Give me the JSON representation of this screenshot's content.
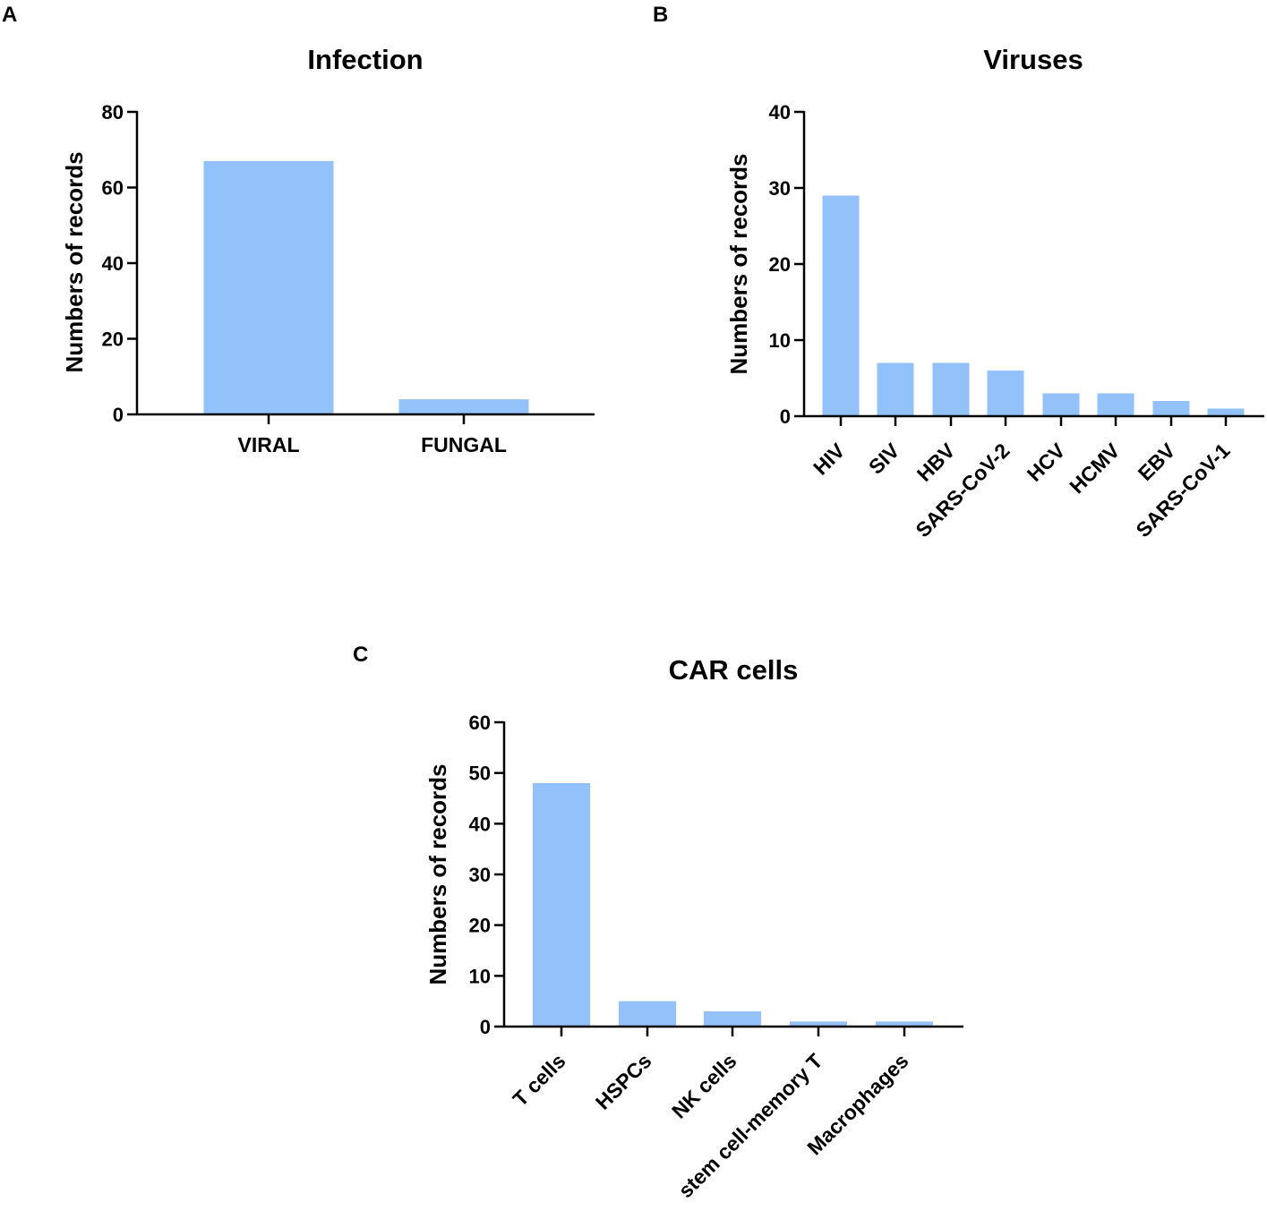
{
  "chart_data": [
    {
      "panel": "A",
      "type": "bar",
      "title": "Infection",
      "xlabel": "",
      "ylabel": "Numbers of records",
      "categories": [
        "VIRAL",
        "FUNGAL"
      ],
      "values": [
        67,
        4
      ],
      "ylim": [
        0,
        80
      ],
      "yticks": [
        0,
        20,
        40,
        60,
        80
      ],
      "bar_color": "#93c1f9"
    },
    {
      "panel": "B",
      "type": "bar",
      "title": "Viruses",
      "xlabel": "",
      "ylabel": "Numbers of records",
      "categories": [
        "HIV",
        "SIV",
        "HBV",
        "SARS-CoV-2",
        "HCV",
        "HCMV",
        "EBV",
        "SARS-CoV-1"
      ],
      "values": [
        29,
        7,
        7,
        6,
        3,
        3,
        2,
        1
      ],
      "ylim": [
        0,
        40
      ],
      "yticks": [
        0,
        10,
        20,
        30,
        40
      ],
      "bar_color": "#93c1f9"
    },
    {
      "panel": "C",
      "type": "bar",
      "title": "CAR cells",
      "xlabel": "",
      "ylabel": "Numbers of records",
      "categories": [
        "T cells",
        "HSPCs",
        "NK cells",
        "stem cell-memory T",
        "Macrophages"
      ],
      "values": [
        48,
        5,
        3,
        1,
        1
      ],
      "ylim": [
        0,
        60
      ],
      "yticks": [
        0,
        10,
        20,
        30,
        40,
        50,
        60
      ],
      "bar_color": "#93c1f9"
    }
  ]
}
